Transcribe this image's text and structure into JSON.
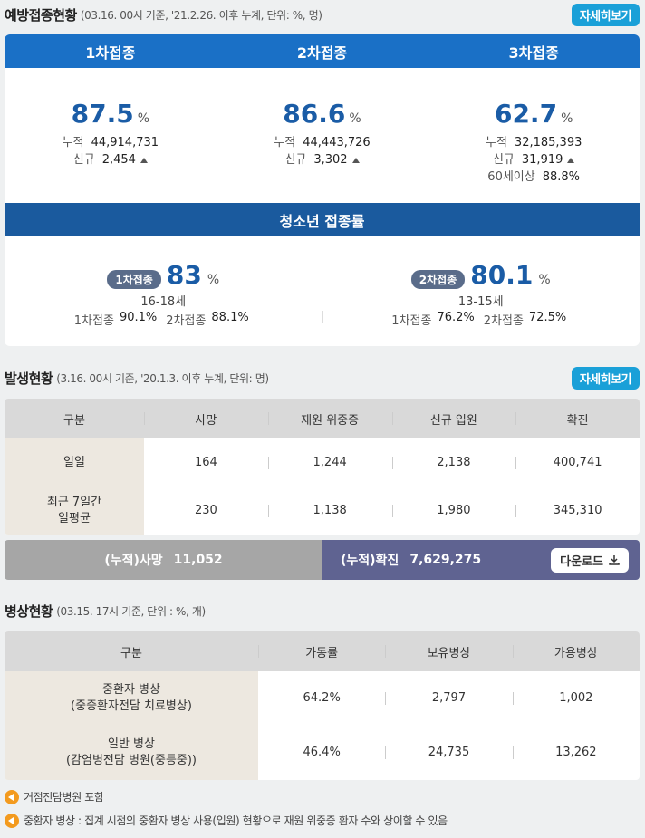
{
  "vaccination": {
    "title": "예방접종현황",
    "note": "(03.16. 00시 기준, '21.2.26. 이후 누계, 단위: %, 명)",
    "button": "자세히보기",
    "doses": [
      {
        "label": "1차접종",
        "rate": "87.5",
        "unit": "%",
        "rows": [
          {
            "label": "누적",
            "value": "44,914,731"
          },
          {
            "label": "신규",
            "value": "2,454",
            "up": true
          }
        ]
      },
      {
        "label": "2차접종",
        "rate": "86.6",
        "unit": "%",
        "rows": [
          {
            "label": "누적",
            "value": "44,443,726"
          },
          {
            "label": "신규",
            "value": "3,302",
            "up": true
          }
        ]
      },
      {
        "label": "3차접종",
        "rate": "62.7",
        "unit": "%",
        "rows": [
          {
            "label": "누적",
            "value": "32,185,393"
          },
          {
            "label": "신규",
            "value": "31,919",
            "up": true
          },
          {
            "label": "60세이상",
            "value": "88.8%"
          }
        ]
      }
    ]
  },
  "teen": {
    "title": "청소년 접종률",
    "groups": [
      {
        "badge": "1차접종",
        "rate": "83",
        "unit": "%",
        "age": "16-18세",
        "details": [
          {
            "label": "1차접종",
            "value": "90.1%"
          },
          {
            "label": "2차접종",
            "value": "88.1%"
          }
        ]
      },
      {
        "badge": "2차접종",
        "rate": "80.1",
        "unit": "%",
        "age": "13-15세",
        "details": [
          {
            "label": "1차접종",
            "value": "76.2%"
          },
          {
            "label": "2차접종",
            "value": "72.5%"
          }
        ]
      }
    ]
  },
  "outbreak": {
    "title": "발생현황",
    "note": "(3.16. 00시 기준, '20.1.3. 이후 누계, 단위: 명)",
    "button": "자세히보기",
    "table": {
      "header": [
        "구분",
        "사망",
        "재원 위중증",
        "신규 입원",
        "확진"
      ],
      "rows": [
        [
          "일일",
          "164",
          "1,244",
          "2,138",
          "400,741"
        ],
        [
          "최근 7일간\n일평균",
          "230",
          "1,138",
          "1,980",
          "345,310"
        ]
      ]
    },
    "summary": {
      "death": {
        "label": "(누적)사망",
        "value": "11,052"
      },
      "confirmed": {
        "label": "(누적)확진",
        "value": "7,629,275"
      },
      "download": "다운로드"
    }
  },
  "beds": {
    "title": "병상현황",
    "note": "(03.15. 17시 기준, 단위 : %, 개)",
    "table": {
      "header": [
        "구분",
        "가동률",
        "보유병상",
        "가용병상"
      ],
      "rows": [
        [
          "중환자 병상\n(중증환자전담 치료병상)",
          "64.2%",
          "2,797",
          "1,002"
        ],
        [
          "일반 병상\n(감염병전담 병원(중등중))",
          "46.4%",
          "24,735",
          "13,262"
        ]
      ]
    },
    "notes": [
      "거점전담병원 포함",
      "중환자 병상 : 집계 시점의 중환자 병상 사용(입원) 현황으로 재원 위중증 환자 수와 상이할 수 있음"
    ]
  }
}
